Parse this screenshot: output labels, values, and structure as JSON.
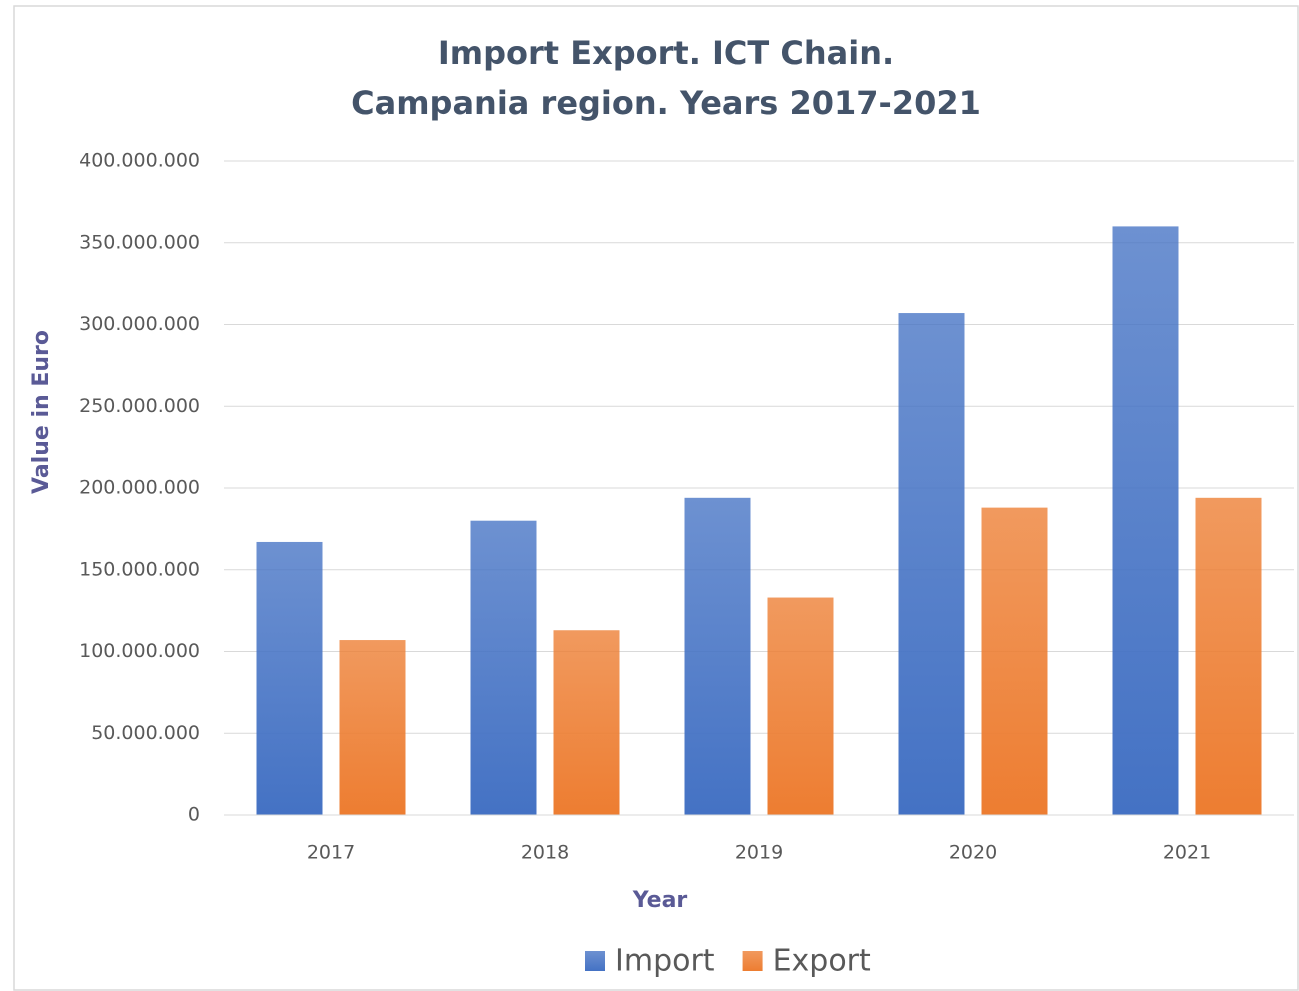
{
  "chart_data": {
    "type": "bar",
    "title": [
      "Import Export. ICT Chain.",
      "Campania region. Years 2017-2021"
    ],
    "x_label": "Year",
    "y_label": "Value in Euro",
    "categories": [
      "2017",
      "2018",
      "2019",
      "2020",
      "2021"
    ],
    "series": [
      {
        "name": "Import",
        "color": "#4472c4",
        "values": [
          167000000,
          180000000,
          194000000,
          307000000,
          360000000
        ]
      },
      {
        "name": "Export",
        "color": "#ed7d31",
        "values": [
          107000000,
          113000000,
          133000000,
          188000000,
          194000000
        ]
      }
    ],
    "ylim": [
      0,
      400000000
    ],
    "yticks": [
      0,
      {
        "value": 50000000,
        "label": "50.000.000"
      },
      {
        "value": 100000000,
        "label": "100.000.000"
      },
      {
        "value": 150000000,
        "label": "150.000.000"
      },
      {
        "value": 200000000,
        "label": "200.000.000"
      },
      {
        "value": 250000000,
        "label": "250.000.000"
      },
      {
        "value": 300000000,
        "label": "300.000.000"
      },
      {
        "value": 350000000,
        "label": "350.000.000"
      },
      {
        "value": 400000000,
        "label": "400.000.000"
      }
    ],
    "grid": true,
    "legend": "bottom"
  }
}
